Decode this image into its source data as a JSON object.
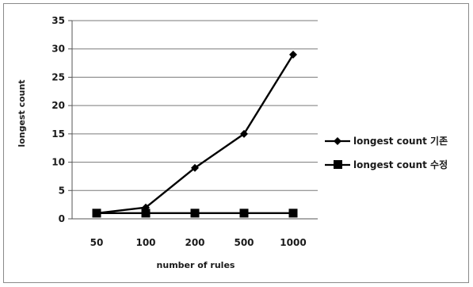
{
  "chart_data": {
    "type": "line",
    "title": "",
    "xlabel": "number of rules",
    "ylabel": "longest count",
    "categories": [
      "50",
      "100",
      "200",
      "500",
      "1000"
    ],
    "ylim": [
      0,
      35
    ],
    "yticks": [
      0,
      5,
      10,
      15,
      20,
      25,
      30,
      35
    ],
    "grid": "horizontal",
    "legend_placement": "right",
    "series": [
      {
        "name": "longest count 기존",
        "marker": "diamond",
        "color": "#000000",
        "values": [
          1,
          2,
          9,
          15,
          29
        ]
      },
      {
        "name": "longest count 수정",
        "marker": "square",
        "color": "#000000",
        "values": [
          1,
          1,
          1,
          1,
          1
        ]
      }
    ]
  }
}
